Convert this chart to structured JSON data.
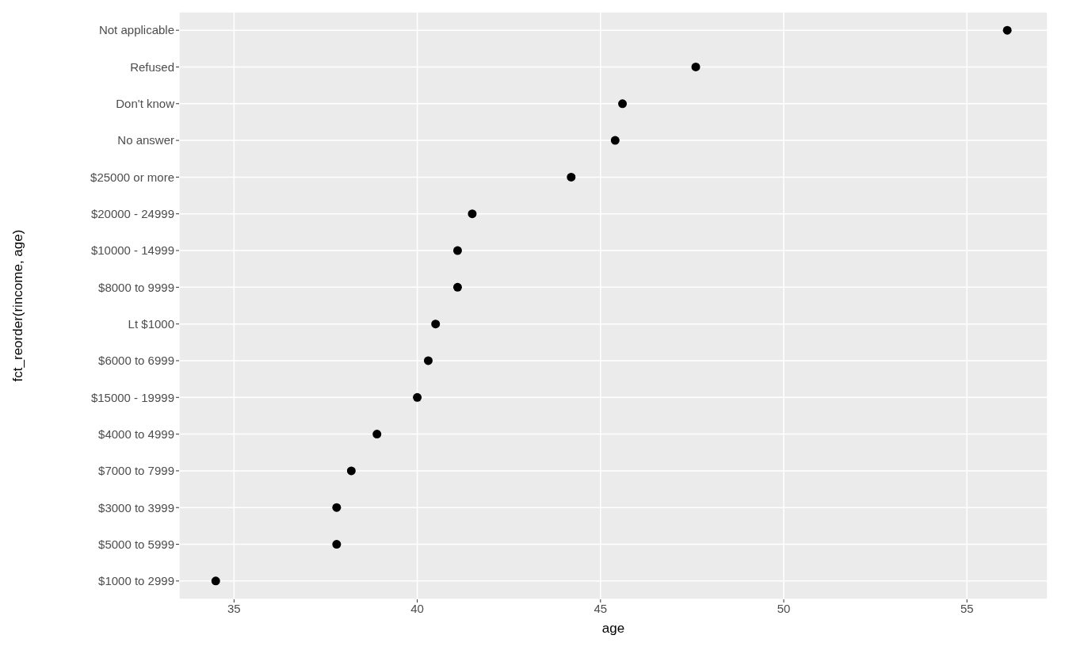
{
  "chart_data": {
    "type": "scatter",
    "orientation": "horizontal",
    "xlabel": "age",
    "ylabel": "fct_reorder(rincome, age)",
    "categories": [
      "Not applicable",
      "Refused",
      "Don't know",
      "No answer",
      "$25000 or more",
      "$20000 - 24999",
      "$10000 - 14999",
      "$8000 to 9999",
      "Lt $1000",
      "$6000 to 6999",
      "$15000 - 19999",
      "$4000 to 4999",
      "$7000 to 7999",
      "$3000 to 3999",
      "$5000 to 5999",
      "$1000 to 2999"
    ],
    "values": [
      56.1,
      47.6,
      45.6,
      45.4,
      44.2,
      41.5,
      41.1,
      41.1,
      40.5,
      40.3,
      40.0,
      38.9,
      38.2,
      37.8,
      37.8,
      34.5
    ],
    "color": "#000000",
    "marker": "circle",
    "xlim": [
      33.5,
      57.2
    ],
    "xticks": [
      35,
      40,
      45,
      50,
      55
    ],
    "grid": true
  }
}
